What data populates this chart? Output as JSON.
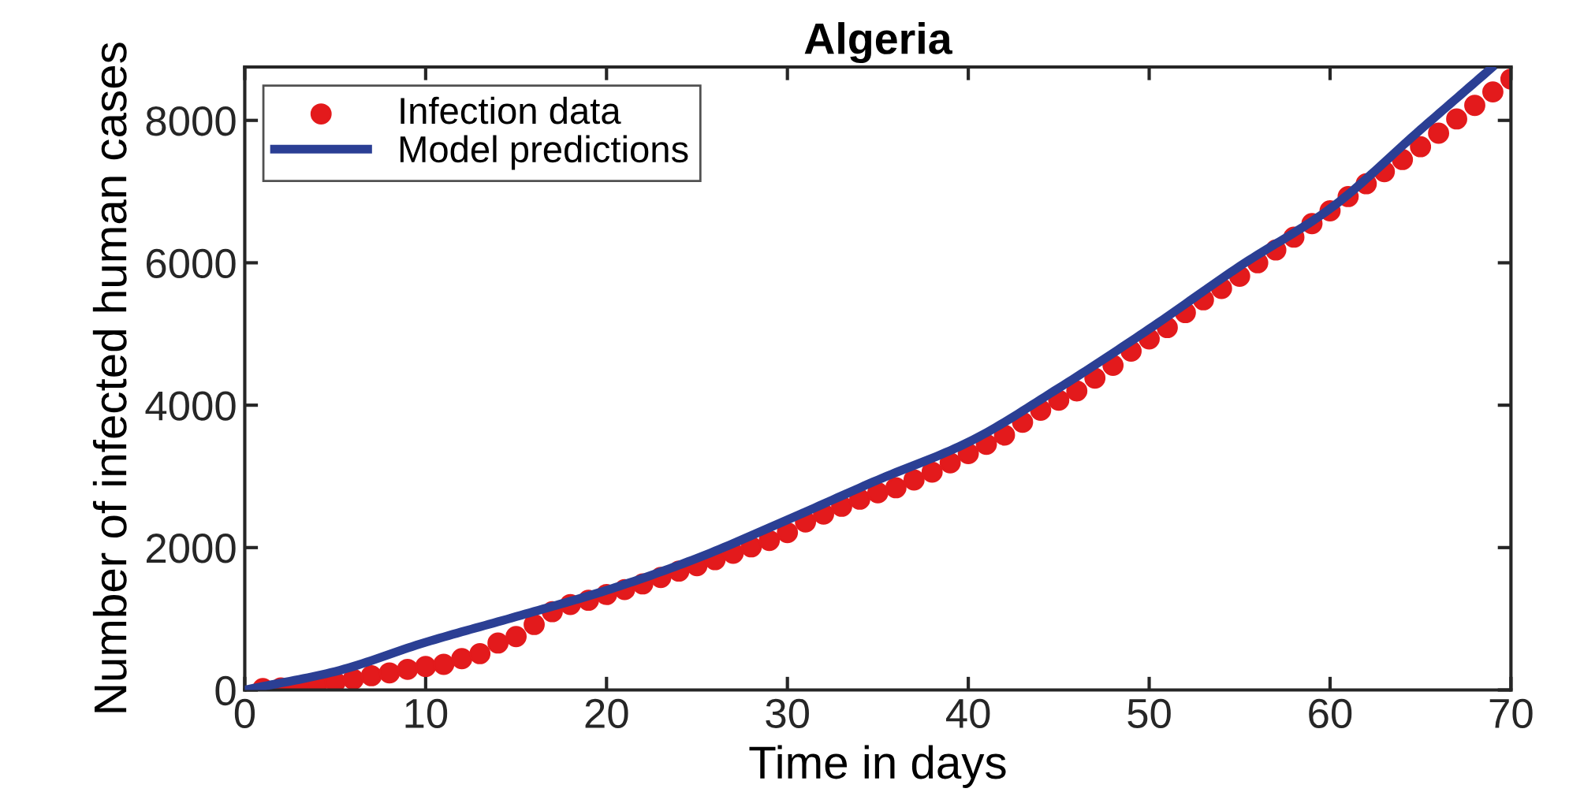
{
  "chart_data": {
    "type": "scatter",
    "title": "Algeria",
    "xlabel": "Time in days",
    "ylabel": "Number of infected human cases",
    "xlim": [
      0,
      70
    ],
    "xticks": [
      0,
      10,
      20,
      30,
      40,
      50,
      60,
      70
    ],
    "ylim": [
      0,
      8750
    ],
    "yticks": [
      0,
      2000,
      4000,
      6000,
      8000
    ],
    "grid": false,
    "legend": "top left",
    "series": [
      {
        "name": "Infection data",
        "marker": "circle",
        "color": "#e31a1c",
        "x": [
          1,
          2,
          3,
          4,
          5,
          6,
          7,
          8,
          9,
          10,
          11,
          12,
          13,
          14,
          15,
          16,
          17,
          18,
          19,
          20,
          21,
          22,
          23,
          24,
          25,
          26,
          27,
          28,
          29,
          30,
          31,
          32,
          33,
          34,
          35,
          36,
          37,
          38,
          39,
          40,
          41,
          42,
          43,
          44,
          45,
          46,
          47,
          48,
          49,
          50,
          51,
          52,
          53,
          54,
          55,
          56,
          57,
          58,
          59,
          60,
          61,
          62,
          63,
          64,
          65,
          66,
          67,
          68,
          69,
          70
        ],
        "values": [
          20,
          30,
          50,
          80,
          110,
          150,
          200,
          240,
          290,
          330,
          360,
          440,
          510,
          660,
          750,
          920,
          1100,
          1200,
          1260,
          1340,
          1410,
          1490,
          1580,
          1670,
          1745,
          1830,
          1920,
          2010,
          2100,
          2210,
          2360,
          2470,
          2580,
          2680,
          2770,
          2840,
          2950,
          3060,
          3190,
          3320,
          3450,
          3580,
          3760,
          3930,
          4070,
          4200,
          4380,
          4560,
          4760,
          4930,
          5090,
          5300,
          5480,
          5640,
          5810,
          6000,
          6180,
          6360,
          6550,
          6730,
          6930,
          7110,
          7280,
          7450,
          7630,
          7820,
          8020,
          8210,
          8400,
          8580
        ]
      },
      {
        "name": "Model predictions",
        "type": "line",
        "line_style": "solid",
        "color": "#2b3f94",
        "x": [
          0,
          5,
          10,
          15,
          20,
          25,
          30,
          35,
          40,
          45,
          50,
          55,
          60,
          65,
          68.9
        ],
        "values": [
          0,
          260,
          670,
          1030,
          1400,
          1850,
          2390,
          2950,
          3480,
          4240,
          5070,
          5950,
          6760,
          7870,
          8730
        ]
      }
    ]
  }
}
